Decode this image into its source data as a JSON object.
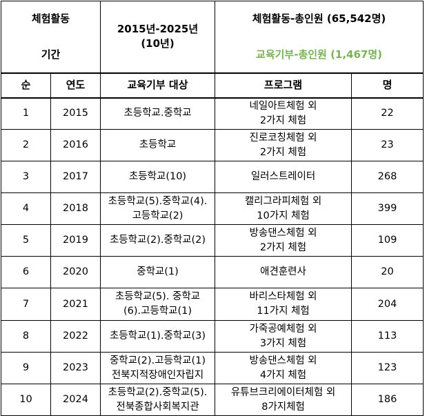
{
  "header": {
    "label_activity": "체험활동",
    "label_period": "기간",
    "period_line1": "2015년-2025년",
    "period_line2": "(10년)",
    "activity_total": "체험활동-총인원 (65,542명)",
    "donation_total": "교육기부-총인원 (1,467명)"
  },
  "columns": [
    "순",
    "연도",
    "교육기부 대상",
    "프로그램",
    "명"
  ],
  "rows": [
    {
      "no": "1",
      "year": "2015",
      "target": [
        "초등학교.중학교"
      ],
      "program": [
        "네일아트체험 외",
        "2가지 체험"
      ],
      "count": "22"
    },
    {
      "no": "2",
      "year": "2016",
      "target": [
        "초등학교"
      ],
      "program": [
        "진로코칭체험 외",
        "2가지 체험"
      ],
      "count": "23"
    },
    {
      "no": "3",
      "year": "2017",
      "target": [
        "초등학교(10)"
      ],
      "program": [
        "일러스트레이터"
      ],
      "count": "268"
    },
    {
      "no": "4",
      "year": "2018",
      "target": [
        "초등학교(5).중학교(4).",
        "고등학교(2)"
      ],
      "program": [
        "캘리그라피체험 외",
        "10가지 체험"
      ],
      "count": "399"
    },
    {
      "no": "5",
      "year": "2019",
      "target": [
        "초등학교(2).중학교(2)"
      ],
      "program": [
        "방송댄스체험 외",
        "2가지 체험"
      ],
      "count": "109"
    },
    {
      "no": "6",
      "year": "2020",
      "target": [
        "중학교(1)"
      ],
      "program": [
        "애견훈련사"
      ],
      "count": "20"
    },
    {
      "no": "7",
      "year": "2021",
      "target": [
        "초등학교(5). 중학교",
        "(6).고등학교(1)"
      ],
      "program": [
        "바리스타체험 외",
        "11가지 체험"
      ],
      "count": "204"
    },
    {
      "no": "8",
      "year": "2022",
      "target": [
        "초등학교(1).중학교(3)"
      ],
      "program": [
        "가죽공예체험 외",
        "3가지 체험"
      ],
      "count": "113"
    },
    {
      "no": "9",
      "year": "2023",
      "target": [
        "중학교(2).고등학교(1)",
        "전북지적장애인자립지"
      ],
      "program": [
        "방송댄스체험 외",
        "4가지 체험"
      ],
      "count": "123"
    },
    {
      "no": "10",
      "year": "2024",
      "target": [
        "초등학교(2).중학교(5).",
        "전북종합사회복지관"
      ],
      "program": [
        "유튜브크리에이터체험 외",
        "8가지체험"
      ],
      "count": "186"
    }
  ]
}
